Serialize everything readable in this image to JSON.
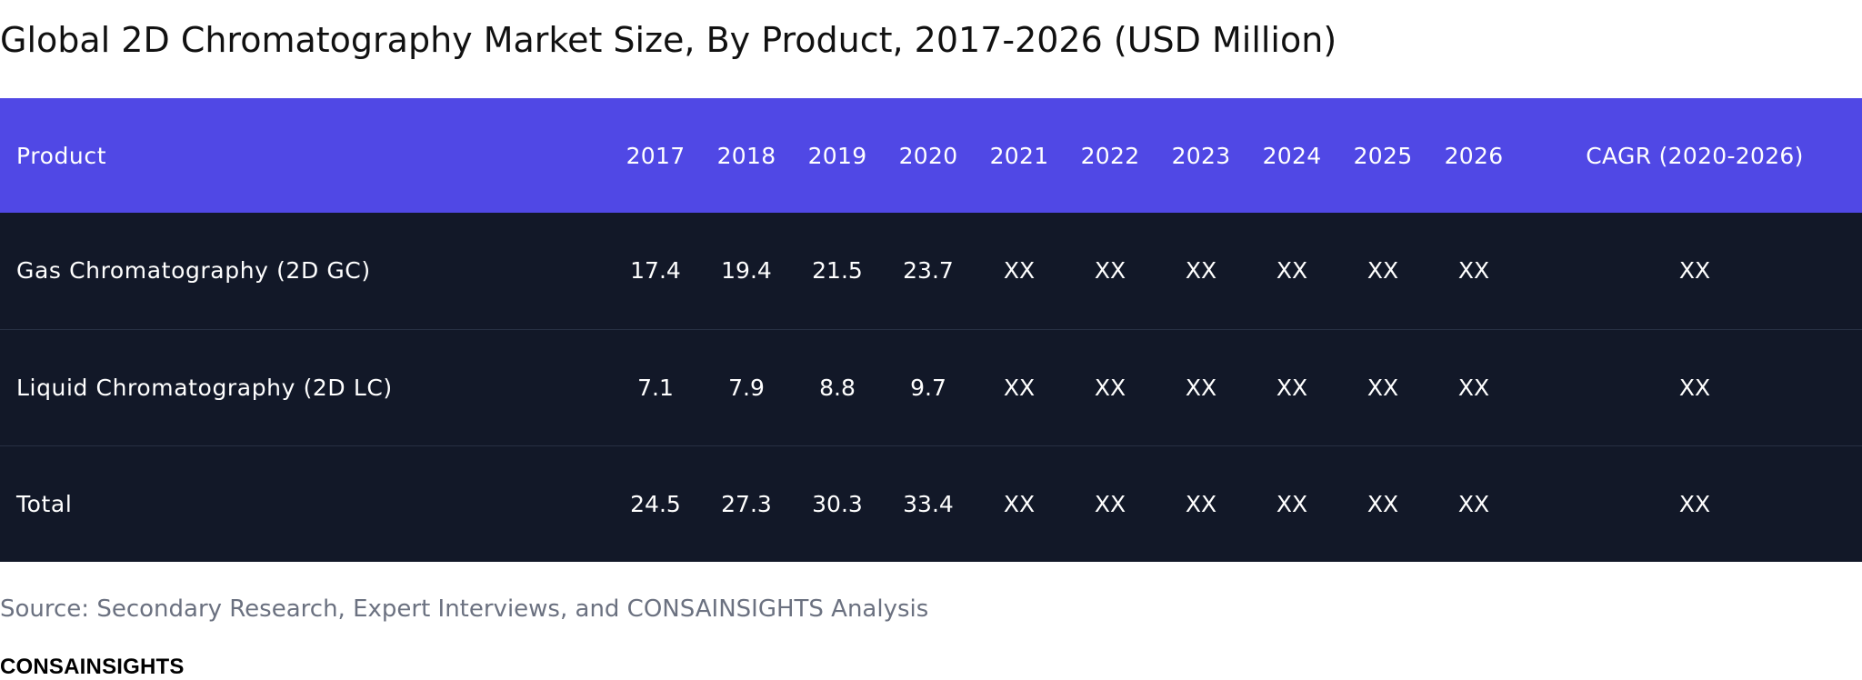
{
  "chart_data": {
    "type": "table",
    "title": "Global 2D Chromatography Market Size, By Product, 2017-2026 (USD Million)",
    "columns": [
      "Product",
      "2017",
      "2018",
      "2019",
      "2020",
      "2021",
      "2022",
      "2023",
      "2024",
      "2025",
      "2026",
      "CAGR (2020-2026)"
    ],
    "rows": [
      [
        "Gas Chromatography (2D GC)",
        "17.4",
        "19.4",
        "21.5",
        "23.7",
        "XX",
        "XX",
        "XX",
        "XX",
        "XX",
        "XX",
        "XX"
      ],
      [
        "Liquid Chromatography (2D LC)",
        "7.1",
        "7.9",
        "8.8",
        "9.7",
        "XX",
        "XX",
        "XX",
        "XX",
        "XX",
        "XX",
        "XX"
      ],
      [
        "Total",
        "24.5",
        "27.3",
        "30.3",
        "33.4",
        "XX",
        "XX",
        "XX",
        "XX",
        "XX",
        "XX",
        "XX"
      ]
    ]
  },
  "source": "Source: Secondary Research, Expert Interviews, and CONSAINSIGHTS Analysis",
  "logo": "CONSAINSIGHTS",
  "colors": {
    "header_bg": "#5048e5",
    "body_bg": "#121828",
    "row_divider": "#273043",
    "text": "#ffffff",
    "source_text": "#6b7180"
  }
}
